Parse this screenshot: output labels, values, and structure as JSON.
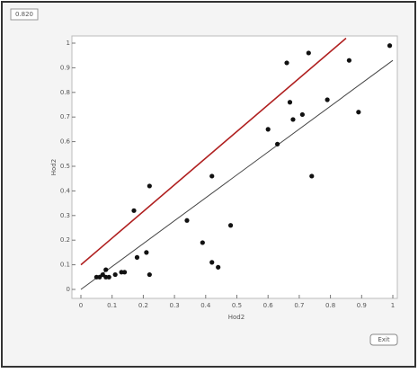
{
  "chart_data": {
    "type": "scatter",
    "panel_label": "0.820",
    "button": "Exit",
    "x_label": "Hod2",
    "y_label": "Hod2",
    "x": [
      0.99,
      0.66,
      0.73,
      0.86,
      0.67,
      0.68,
      0.71,
      0.79,
      0.89,
      0.6,
      0.63,
      0.74,
      0.42,
      0.22,
      0.17,
      0.34,
      0.48,
      0.39,
      0.21,
      0.18,
      0.42,
      0.44,
      0.22,
      0.05,
      0.06,
      0.07,
      0.08,
      0.09,
      0.11,
      0.13,
      0.14,
      0.08
    ],
    "values": [
      0.99,
      0.92,
      0.96,
      0.93,
      0.76,
      0.69,
      0.71,
      0.77,
      0.72,
      0.65,
      0.59,
      0.46,
      0.46,
      0.42,
      0.32,
      0.28,
      0.26,
      0.19,
      0.15,
      0.13,
      0.11,
      0.09,
      0.06,
      0.05,
      0.05,
      0.06,
      0.08,
      0.05,
      0.06,
      0.07,
      0.07,
      0.05
    ],
    "color": "#111111",
    "lines": [
      {
        "color": "#b02020",
        "x": [
          0,
          0.85
        ],
        "values": [
          0.1,
          1.02
        ]
      },
      {
        "color": "#444444",
        "x": [
          0,
          1
        ],
        "values": [
          0,
          0.93
        ]
      }
    ],
    "xlim": [
      0,
      1
    ],
    "ylim": [
      0,
      1
    ],
    "xticks": [
      0,
      0.1,
      0.2,
      0.3,
      0.4,
      0.5,
      0.6,
      0.7,
      0.8,
      0.9,
      1
    ],
    "yticks": [
      0,
      0.1,
      0.2,
      0.3,
      0.4,
      0.5,
      0.6,
      0.7,
      0.8,
      0.9,
      1
    ]
  }
}
